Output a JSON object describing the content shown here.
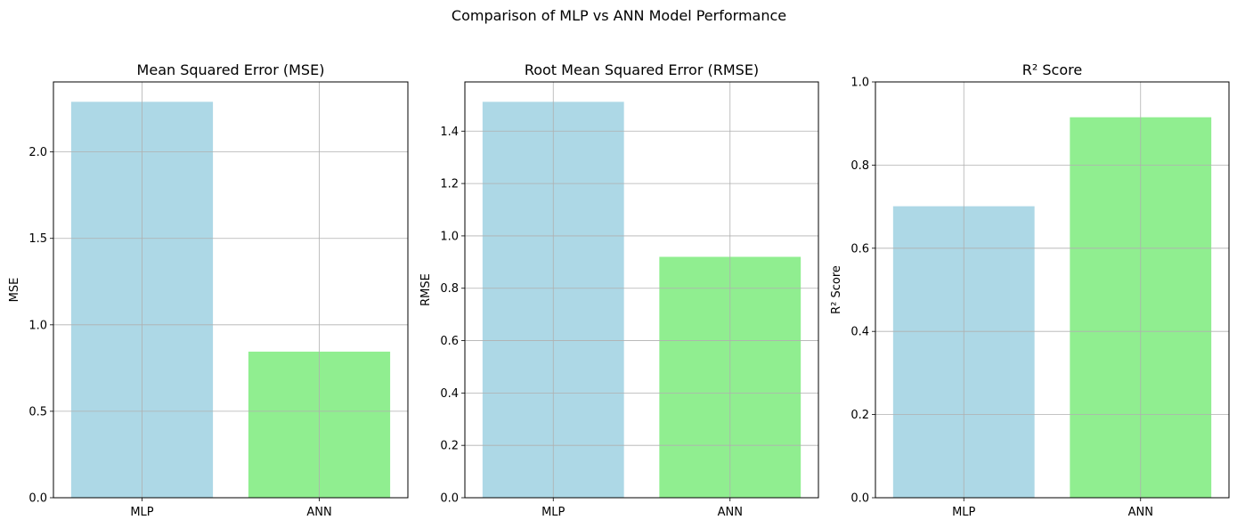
{
  "figure_title": "Comparison of MLP vs ANN Model Performance",
  "colors": {
    "mlp": "#add8e6",
    "ann": "#90ee90",
    "grid": "#b0b0b0",
    "axis": "#000000"
  },
  "chart_data": [
    {
      "type": "bar",
      "title": "Mean Squared Error (MSE)",
      "xlabel": "",
      "ylabel": "MSE",
      "categories": [
        "MLP",
        "ANN"
      ],
      "values": [
        2.29,
        0.845
      ],
      "ylim": [
        0,
        2.405
      ],
      "yticks": [
        0.0,
        0.5,
        1.0,
        1.5,
        2.0
      ],
      "ytick_labels": [
        "0.0",
        "0.5",
        "1.0",
        "1.5",
        "2.0"
      ],
      "grid": true,
      "bar_colors": [
        "#add8e6",
        "#90ee90"
      ]
    },
    {
      "type": "bar",
      "title": "Root Mean Squared Error (RMSE)",
      "xlabel": "",
      "ylabel": "RMSE",
      "categories": [
        "MLP",
        "ANN"
      ],
      "values": [
        1.512,
        0.92
      ],
      "ylim": [
        0,
        1.588
      ],
      "yticks": [
        0.0,
        0.2,
        0.4,
        0.6,
        0.8,
        1.0,
        1.2,
        1.4
      ],
      "ytick_labels": [
        "0.0",
        "0.2",
        "0.4",
        "0.6",
        "0.8",
        "1.0",
        "1.2",
        "1.4"
      ],
      "grid": true,
      "bar_colors": [
        "#add8e6",
        "#90ee90"
      ]
    },
    {
      "type": "bar",
      "title": "R² Score",
      "xlabel": "",
      "ylabel": "R² Score",
      "categories": [
        "MLP",
        "ANN"
      ],
      "values": [
        0.701,
        0.915
      ],
      "ylim": [
        0,
        1.0
      ],
      "yticks": [
        0.0,
        0.2,
        0.4,
        0.6,
        0.8,
        1.0
      ],
      "ytick_labels": [
        "0.0",
        "0.2",
        "0.4",
        "0.6",
        "0.8",
        "1.0"
      ],
      "grid": true,
      "bar_colors": [
        "#add8e6",
        "#90ee90"
      ]
    }
  ]
}
